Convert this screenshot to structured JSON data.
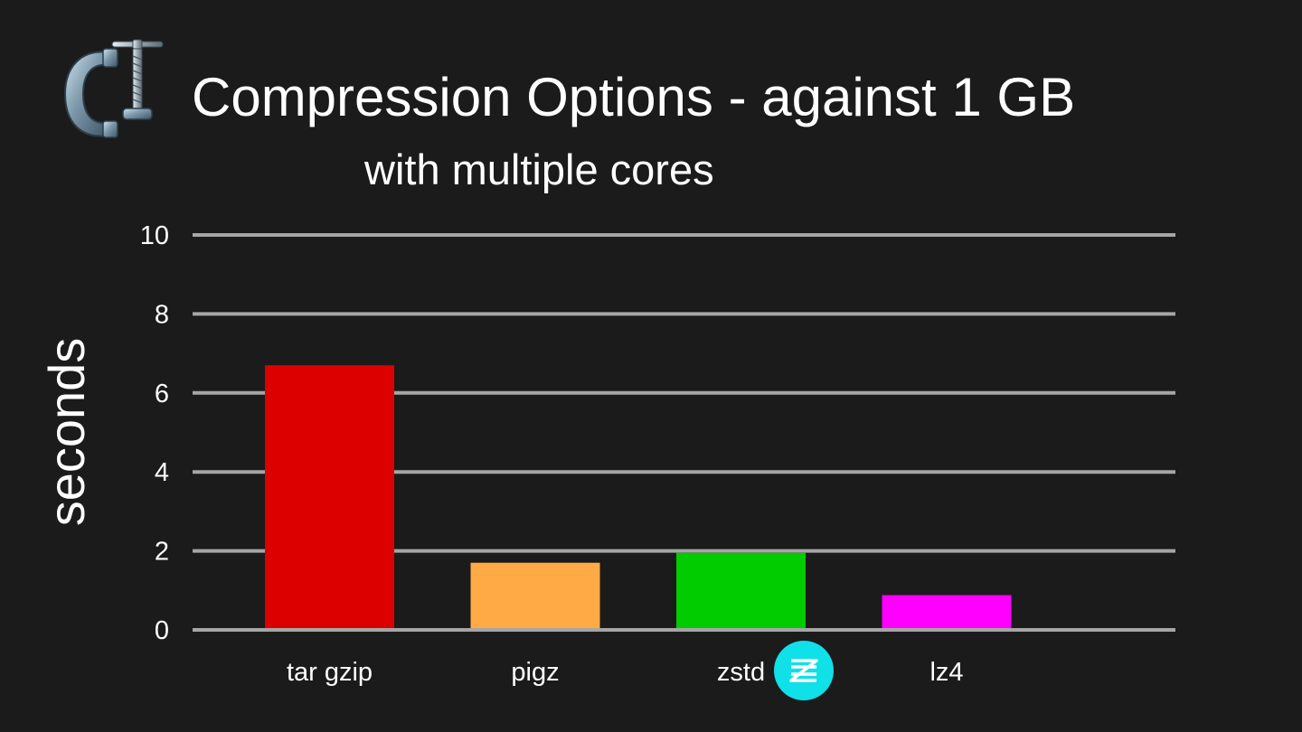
{
  "slide": {
    "title": "Compression Options - against 1 GB",
    "subtitle": "with multiple cores",
    "title_icon": "clamp-icon",
    "badge_icon": "zstd-logo-icon",
    "badge_color": "#10e0e8"
  },
  "chart_data": {
    "type": "bar",
    "title": "Compression Options - against 1 GB",
    "subtitle": "with multiple cores",
    "categories": [
      "tar gzip",
      "pigz",
      "zstd",
      "lz4"
    ],
    "values": [
      6.7,
      1.7,
      1.95,
      0.88
    ],
    "colors": [
      "#dd0000",
      "#ffaa44",
      "#00cc00",
      "#ff00ff"
    ],
    "xlabel": "",
    "ylabel": "seconds",
    "ylim": [
      0,
      10
    ],
    "yticks": [
      0,
      2,
      4,
      6,
      8,
      10
    ],
    "grid": true,
    "gridline_color": "#a6a6a6",
    "legend": "none"
  }
}
